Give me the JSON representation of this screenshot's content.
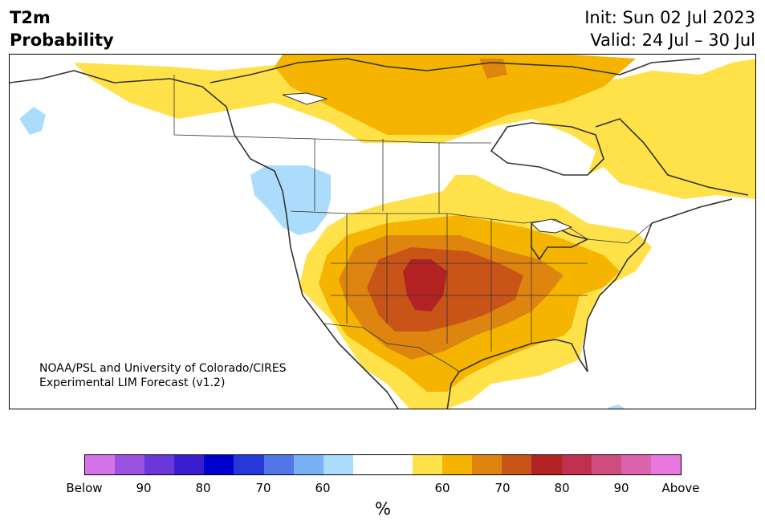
{
  "title": {
    "line1": "T2m",
    "line2": "Probability"
  },
  "init": {
    "line1": "Init: Sun 02 Jul 2023",
    "line2": "Valid: 24 Jul – 30 Jul"
  },
  "credit": {
    "line1": "NOAA/PSL and University of Colorado/CIRES",
    "line2": "Experimental LIM Forecast (v1.2)"
  },
  "colorbar": {
    "colors": [
      "#d474e8",
      "#9a52e3",
      "#6a37d8",
      "#3b1dd0",
      "#0000cd",
      "#2738d8",
      "#5275e8",
      "#78b0f5",
      "#acdcfb",
      "#ffffff",
      "#ffffff",
      "#ffe14a",
      "#f4b400",
      "#de8510",
      "#c85418",
      "#b22222",
      "#c23050",
      "#cf4c7e",
      "#db62ad",
      "#e878dd"
    ],
    "ticks": [
      "Below",
      "90",
      "80",
      "70",
      "60",
      "60",
      "70",
      "80",
      "90",
      "Above"
    ],
    "label": "%"
  },
  "category_colors": {
    "below_60": "#acdcfb",
    "above_60": "#ffe14a",
    "above_65": "#f4b400",
    "above_70": "#de8510",
    "above_75": "#c85418",
    "above_80": "#b22222"
  }
}
